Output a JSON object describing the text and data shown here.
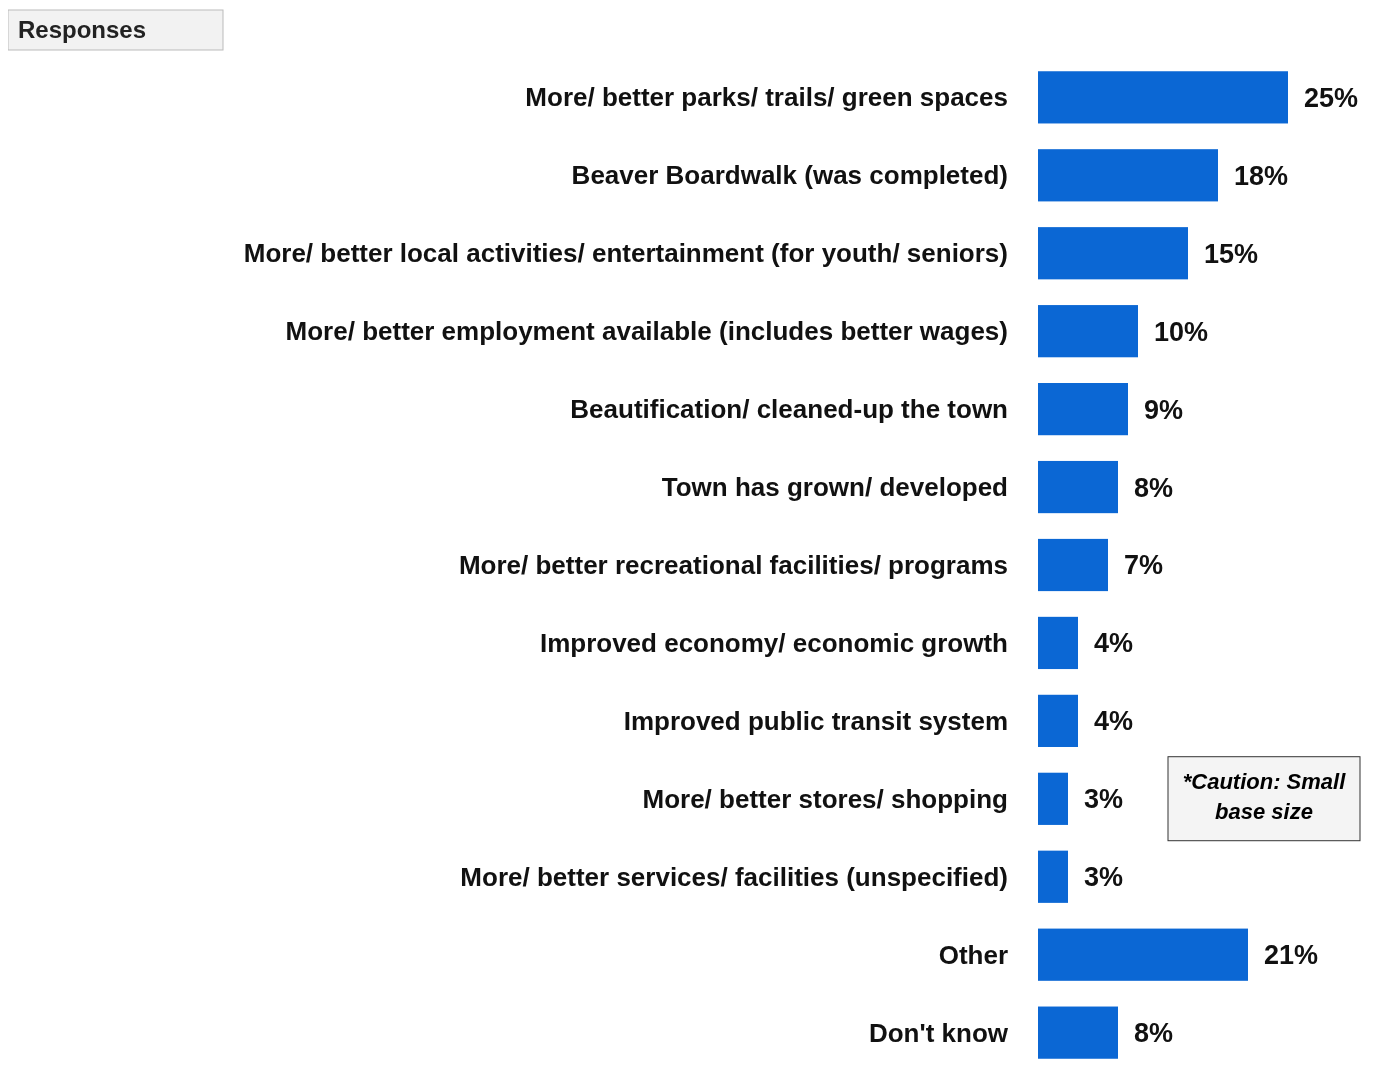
{
  "chart_data": {
    "type": "bar",
    "orientation": "horizontal",
    "color": "#0b67d4",
    "categories": [
      "More/ better parks/ trails/ green spaces",
      "Beaver Boardwalk (was completed)",
      "More/ better local activities/ entertainment (for youth/ seniors)",
      "More/ better employment available (includes better wages)",
      "Beautification/ cleaned-up the town",
      "Town has grown/ developed",
      "More/ better recreational facilities/ programs",
      "Improved economy/ economic growth",
      "Improved public transit system",
      "More/ better stores/ shopping",
      "More/ better services/ facilities (unspecified)",
      "Other",
      "Don't know"
    ],
    "values": [
      25,
      18,
      15,
      10,
      9,
      8,
      7,
      4,
      4,
      3,
      3,
      21,
      8
    ],
    "value_labels": [
      "25%",
      "18%",
      "15%",
      "10%",
      "9%",
      "8%",
      "7%",
      "4%",
      "4%",
      "3%",
      "3%",
      "21%",
      "8%"
    ],
    "annotations": [
      "Responses",
      "*Caution: Small base size"
    ]
  }
}
